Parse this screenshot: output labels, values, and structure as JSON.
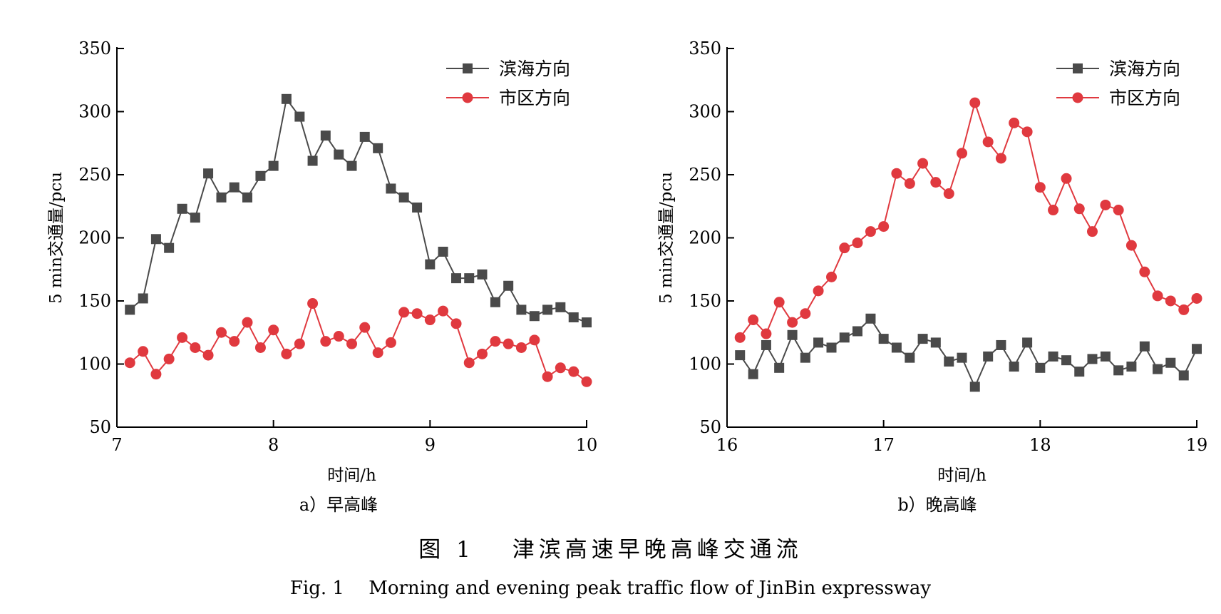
{
  "colors": {
    "series_a": "#4a4a4a",
    "series_b": "#e0393f"
  },
  "caption_cn": "图 1　 津滨高速早晚高峰交通流",
  "caption_en": "Fig. 1　 Morning and evening peak traffic flow of JinBin expressway",
  "chart_data": [
    {
      "type": "line",
      "subcaption": "a）早高峰",
      "xlabel": "时间/h",
      "ylabel": "5 min交通量/pcu",
      "xlim": [
        7,
        10
      ],
      "ylim": [
        50,
        350
      ],
      "xticks": [
        7,
        8,
        9,
        10
      ],
      "yticks": [
        50,
        100,
        150,
        200,
        250,
        300,
        350
      ],
      "legend_position": "top-right",
      "x": [
        7.083,
        7.167,
        7.25,
        7.333,
        7.417,
        7.5,
        7.583,
        7.667,
        7.75,
        7.833,
        7.917,
        8.0,
        8.083,
        8.167,
        8.25,
        8.333,
        8.417,
        8.5,
        8.583,
        8.667,
        8.75,
        8.833,
        8.917,
        9.0,
        9.083,
        9.167,
        9.25,
        9.333,
        9.417,
        9.5,
        9.583,
        9.667,
        9.75,
        9.833,
        9.917,
        10.0
      ],
      "series": [
        {
          "name": "滨海方向",
          "marker": "square",
          "color": "#4a4a4a",
          "values": [
            143,
            152,
            199,
            192,
            223,
            216,
            251,
            232,
            240,
            232,
            249,
            257,
            310,
            296,
            261,
            281,
            266,
            257,
            280,
            271,
            239,
            232,
            224,
            179,
            189,
            168,
            168,
            171,
            149,
            162,
            143,
            138,
            143,
            145,
            137,
            133
          ]
        },
        {
          "name": "市区方向",
          "marker": "circle",
          "color": "#e0393f",
          "values": [
            101,
            110,
            92,
            104,
            121,
            113,
            107,
            125,
            118,
            133,
            113,
            127,
            108,
            116,
            148,
            118,
            122,
            116,
            129,
            109,
            117,
            141,
            140,
            135,
            142,
            132,
            101,
            108,
            118,
            116,
            113,
            119,
            90,
            97,
            94,
            86
          ]
        }
      ]
    },
    {
      "type": "line",
      "subcaption": "b）晚高峰",
      "xlabel": "时间/h",
      "ylabel": "5 min交通量/pcu",
      "xlim": [
        16,
        19
      ],
      "ylim": [
        50,
        350
      ],
      "xticks": [
        16,
        17,
        18,
        19
      ],
      "yticks": [
        50,
        100,
        150,
        200,
        250,
        300,
        350
      ],
      "legend_position": "top-right",
      "x": [
        16.083,
        16.167,
        16.25,
        16.333,
        16.417,
        16.5,
        16.583,
        16.667,
        16.75,
        16.833,
        16.917,
        17.0,
        17.083,
        17.167,
        17.25,
        17.333,
        17.417,
        17.5,
        17.583,
        17.667,
        17.75,
        17.833,
        17.917,
        18.0,
        18.083,
        18.167,
        18.25,
        18.333,
        18.417,
        18.5,
        18.583,
        18.667,
        18.75,
        18.833,
        18.917,
        19.0
      ],
      "series": [
        {
          "name": "滨海方向",
          "marker": "square",
          "color": "#4a4a4a",
          "values": [
            107,
            92,
            115,
            97,
            123,
            105,
            117,
            113,
            121,
            126,
            136,
            120,
            113,
            105,
            120,
            117,
            102,
            105,
            82,
            106,
            115,
            98,
            117,
            97,
            106,
            103,
            94,
            104,
            106,
            95,
            98,
            114,
            96,
            101,
            91,
            112
          ]
        },
        {
          "name": "市区方向",
          "marker": "circle",
          "color": "#e0393f",
          "values": [
            121,
            135,
            124,
            149,
            133,
            140,
            158,
            169,
            192,
            196,
            205,
            209,
            251,
            243,
            259,
            244,
            235,
            267,
            307,
            276,
            263,
            291,
            284,
            240,
            222,
            247,
            223,
            205,
            226,
            222,
            194,
            173,
            154,
            150,
            143,
            152
          ]
        }
      ]
    }
  ]
}
